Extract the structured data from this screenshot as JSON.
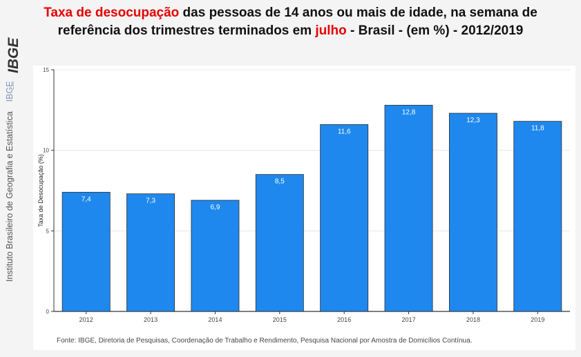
{
  "title": {
    "part1_red": "Taxa de desocupação",
    "part2": " das pessoas de 14 anos ou mais de idade, na semana de",
    "part3": "referência dos trimestres terminados em ",
    "part4_red": "julho",
    "part5": " - Brasil - (em %) - 2012/2019"
  },
  "sidebar": {
    "logo_text": "IBGE",
    "institution": "Instituto Brasileiro de Geografia e Estatística",
    "abbr": "IBGE"
  },
  "footer": "Fonte: IBGE, Diretoria de Pesquisas, Coordenação de Trabalho e Rendimento, Pesquisa Nacional por Amostra de Domicílios Contínua.",
  "colors": {
    "bar": "#1f88ee",
    "bar_stroke": "#2b2b2b",
    "title_accent": "#e60000"
  },
  "chart_data": {
    "type": "bar",
    "categories": [
      "2012",
      "2013",
      "2014",
      "2015",
      "2016",
      "2017",
      "2018",
      "2019"
    ],
    "values": [
      7.4,
      7.3,
      6.9,
      8.5,
      11.6,
      12.8,
      12.3,
      11.8
    ],
    "labels": [
      "7,4",
      "7,3",
      "6,9",
      "8,5",
      "11,6",
      "12,8",
      "12,3",
      "11,8"
    ],
    "ylabel": "Taxa de Desocupação (%)",
    "xlabel": "",
    "ylim": [
      0,
      15
    ],
    "yticks": [
      0,
      5,
      10,
      15
    ],
    "grid": true
  }
}
